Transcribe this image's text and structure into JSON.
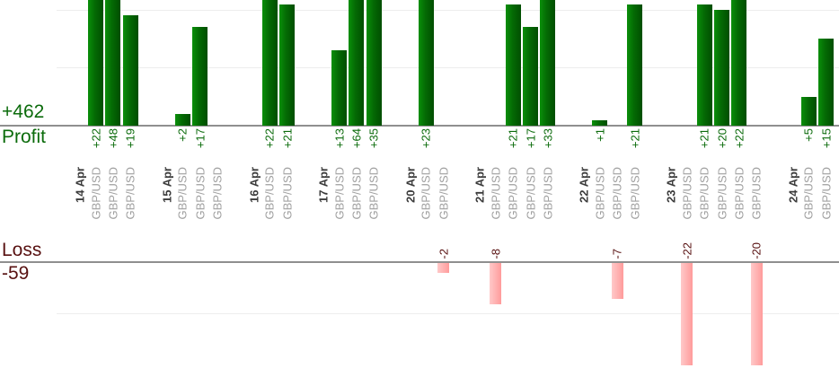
{
  "labels": {
    "profit_total": "+462",
    "profit_axis": "Profit",
    "loss_axis": "Loss",
    "loss_total": "-59"
  },
  "chart_data": {
    "type": "bar",
    "description": "Per-trade profit (green, up) and loss (pink, down) bars grouped by date; values labelled beside each bar, instrument labelled under each bar",
    "instrument": "GBP/USD",
    "value_unit": "pips",
    "profit_total": 462,
    "loss_total": -59,
    "gridline_step": 10,
    "profit_axis_visible_max": 22,
    "loss_axis_visible_min": -20,
    "groups": [
      {
        "date": "14 Apr",
        "instruments": [
          "GBP/USD",
          "GBP/USD",
          "GBP/USD"
        ],
        "values": [
          22,
          48,
          19
        ]
      },
      {
        "date": "15 Apr",
        "instruments": [
          "GBP/USD",
          "GBP/USD",
          "GBP/USD"
        ],
        "values": [
          2,
          17,
          0
        ]
      },
      {
        "date": "16 Apr",
        "instruments": [
          "GBP/USD",
          "GBP/USD"
        ],
        "values": [
          22,
          21
        ]
      },
      {
        "date": "17 Apr",
        "instruments": [
          "GBP/USD",
          "GBP/USD",
          "GBP/USD"
        ],
        "values": [
          13,
          64,
          35
        ]
      },
      {
        "date": "20 Apr",
        "instruments": [
          "GBP/USD",
          "GBP/USD"
        ],
        "values": [
          23,
          -2
        ]
      },
      {
        "date": "21 Apr",
        "instruments": [
          "GBP/USD",
          "GBP/USD",
          "GBP/USD",
          "GBP/USD"
        ],
        "values": [
          -8,
          21,
          17,
          33
        ]
      },
      {
        "date": "22 Apr",
        "instruments": [
          "GBP/USD",
          "GBP/USD",
          "GBP/USD"
        ],
        "values": [
          1,
          -7,
          21
        ]
      },
      {
        "date": "23 Apr",
        "instruments": [
          "GBP/USD",
          "GBP/USD",
          "GBP/USD",
          "GBP/USD",
          "GBP/USD"
        ],
        "values": [
          -22,
          21,
          20,
          22,
          -20
        ]
      },
      {
        "date": "24 Apr",
        "instruments": [
          "GBP/USD",
          "GBP/USD"
        ],
        "values": [
          5,
          15
        ]
      }
    ]
  },
  "colors": {
    "profit_text": "#0b6b0b",
    "loss_text": "#581111",
    "profit_bar_light": "#0a8f0a",
    "profit_bar_dark": "#014e01",
    "loss_bar_light": "#ffc9c9",
    "loss_bar_dark": "#ff9b9b",
    "date_text": "#3c3c3c",
    "instrument_text": "#a0a0a0",
    "axis_line": "#8f8f8f",
    "gridline": "#ededed"
  }
}
